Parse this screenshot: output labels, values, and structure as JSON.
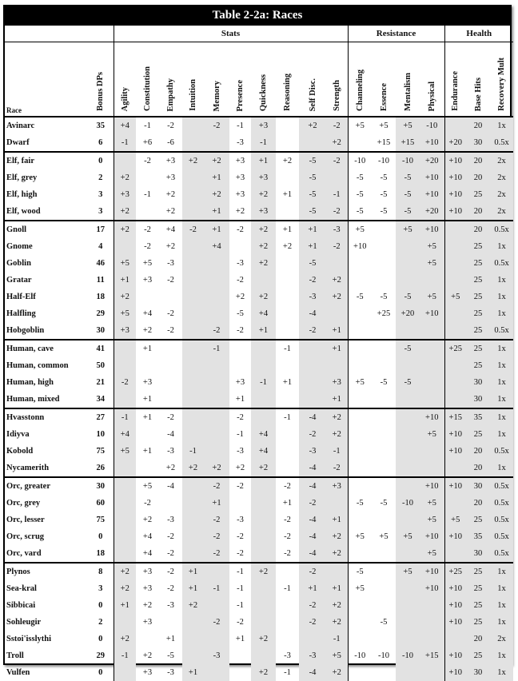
{
  "title": "Table 2-2a: Races",
  "groups": {
    "stats": "Stats",
    "resistance": "Resistance",
    "health": "Health"
  },
  "headers": {
    "race": "Race",
    "bonus_dps": "Bonus DPs",
    "stats": [
      "Agility",
      "Constitution",
      "Empathy",
      "Intuition",
      "Memory",
      "Presence",
      "Quickness",
      "Reasoning",
      "Self Disc.",
      "Strength"
    ],
    "resistance": [
      "Channeling",
      "Essence",
      "Mentalism",
      "Physical"
    ],
    "health": [
      "Endurance",
      "Base Hits",
      "Recovery Mult"
    ]
  },
  "row_groups": [
    [
      [
        "Avinarc",
        "35",
        "+4",
        "-1",
        "-2",
        "",
        "-2",
        "-1",
        "+3",
        "",
        "+2",
        "-2",
        "+5",
        "+5",
        "+5",
        "-10",
        "",
        "20",
        "1x"
      ],
      [
        "Dwarf",
        "6",
        "-1",
        "+6",
        "-6",
        "",
        "",
        "-3",
        "-1",
        "",
        "",
        "+2",
        "",
        "+15",
        "+15",
        "+10",
        "+20",
        "30",
        "0.5x"
      ]
    ],
    [
      [
        "Elf, fair",
        "0",
        "",
        "-2",
        "+3",
        "+2",
        "+2",
        "+3",
        "+1",
        "+2",
        "-5",
        "-2",
        "-10",
        "-10",
        "-10",
        "+20",
        "+10",
        "20",
        "2x"
      ],
      [
        "Elf, grey",
        "2",
        "+2",
        "",
        "+3",
        "",
        "+1",
        "+3",
        "+3",
        "",
        "-5",
        "",
        "-5",
        "-5",
        "-5",
        "+10",
        "+10",
        "20",
        "2x"
      ],
      [
        "Elf, high",
        "3",
        "+3",
        "-1",
        "+2",
        "",
        "+2",
        "+3",
        "+2",
        "+1",
        "-5",
        "-1",
        "-5",
        "-5",
        "-5",
        "+10",
        "+10",
        "25",
        "2x"
      ],
      [
        "Elf, wood",
        "3",
        "+2",
        "",
        "+2",
        "",
        "+1",
        "+2",
        "+3",
        "",
        "-5",
        "-2",
        "-5",
        "-5",
        "-5",
        "+20",
        "+10",
        "20",
        "2x"
      ]
    ],
    [
      [
        "Gnoll",
        "17",
        "+2",
        "-2",
        "+4",
        "-2",
        "+1",
        "-2",
        "+2",
        "+1",
        "+1",
        "-3",
        "+5",
        "",
        "+5",
        "+10",
        "",
        "20",
        "0.5x"
      ],
      [
        "Gnome",
        "4",
        "",
        "-2",
        "+2",
        "",
        "+4",
        "",
        "+2",
        "+2",
        "+1",
        "-2",
        "+10",
        "",
        "",
        "+5",
        "",
        "25",
        "1x"
      ],
      [
        "Goblin",
        "46",
        "+5",
        "+5",
        "-3",
        "",
        "",
        "-3",
        "+2",
        "",
        "-5",
        "",
        "",
        "",
        "",
        "+5",
        "",
        "25",
        "0.5x"
      ],
      [
        "Gratar",
        "11",
        "+1",
        "+3",
        "-2",
        "",
        "",
        "-2",
        "",
        "",
        "-2",
        "+2",
        "",
        "",
        "",
        "",
        "",
        "25",
        "1x"
      ],
      [
        "Half-Elf",
        "18",
        "+2",
        "",
        "",
        "",
        "",
        "+2",
        "+2",
        "",
        "-3",
        "+2",
        "-5",
        "-5",
        "-5",
        "+5",
        "+5",
        "25",
        "1x"
      ],
      [
        "Halfling",
        "29",
        "+5",
        "+4",
        "-2",
        "",
        "",
        "-5",
        "+4",
        "",
        "-4",
        "",
        "",
        "+25",
        "+20",
        "+10",
        "",
        "25",
        "1x"
      ],
      [
        "Hobgoblin",
        "30",
        "+3",
        "+2",
        "-2",
        "",
        "-2",
        "-2",
        "+1",
        "",
        "-2",
        "+1",
        "",
        "",
        "",
        "",
        "",
        "25",
        "0.5x"
      ]
    ],
    [
      [
        "Human, cave",
        "41",
        "",
        "+1",
        "",
        "",
        "-1",
        "",
        "",
        "-1",
        "",
        "+1",
        "",
        "",
        "-5",
        "",
        "+25",
        "25",
        "1x"
      ],
      [
        "Human, common",
        "50",
        "",
        "",
        "",
        "",
        "",
        "",
        "",
        "",
        "",
        "",
        "",
        "",
        "",
        "",
        "",
        "25",
        "1x"
      ],
      [
        "Human, high",
        "21",
        "-2",
        "+3",
        "",
        "",
        "",
        "+3",
        "-1",
        "+1",
        "",
        "+3",
        "+5",
        "-5",
        "-5",
        "",
        "",
        "30",
        "1x"
      ],
      [
        "Human, mixed",
        "34",
        "",
        "+1",
        "",
        "",
        "",
        "+1",
        "",
        "",
        "",
        "+1",
        "",
        "",
        "",
        "",
        "",
        "30",
        "1x"
      ]
    ],
    [
      [
        "Hvasstonn",
        "27",
        "-1",
        "+1",
        "-2",
        "",
        "",
        "-2",
        "",
        "-1",
        "-4",
        "+2",
        "",
        "",
        "",
        "+10",
        "+15",
        "35",
        "1x"
      ],
      [
        "Idiyva",
        "10",
        "+4",
        "",
        "-4",
        "",
        "",
        "-1",
        "+4",
        "",
        "-2",
        "+2",
        "",
        "",
        "",
        "+5",
        "+10",
        "25",
        "1x"
      ],
      [
        "Kobold",
        "75",
        "+5",
        "+1",
        "-3",
        "-1",
        "",
        "-3",
        "+4",
        "",
        "-3",
        "-1",
        "",
        "",
        "",
        "",
        "+10",
        "20",
        "0.5x"
      ],
      [
        "Nycamerith",
        "26",
        "",
        "",
        "+2",
        "+2",
        "+2",
        "+2",
        "+2",
        "",
        "-4",
        "-2",
        "",
        "",
        "",
        "",
        "",
        "20",
        "1x"
      ]
    ],
    [
      [
        "Orc, greater",
        "30",
        "",
        "+5",
        "-4",
        "",
        "-2",
        "-2",
        "",
        "-2",
        "-4",
        "+3",
        "",
        "",
        "",
        "+10",
        "+10",
        "30",
        "0.5x"
      ],
      [
        "Orc, grey",
        "60",
        "",
        "-2",
        "",
        "",
        "+1",
        "",
        "",
        "+1",
        "-2",
        "",
        "-5",
        "-5",
        "-10",
        "+5",
        "",
        "20",
        "0.5x"
      ],
      [
        "Orc, lesser",
        "75",
        "",
        "+2",
        "-3",
        "",
        "-2",
        "-3",
        "",
        "-2",
        "-4",
        "+1",
        "",
        "",
        "",
        "+5",
        "+5",
        "25",
        "0.5x"
      ],
      [
        "Orc, scrug",
        "0",
        "",
        "+4",
        "-2",
        "",
        "-2",
        "-2",
        "",
        "-2",
        "-4",
        "+2",
        "+5",
        "+5",
        "+5",
        "+10",
        "+10",
        "35",
        "0.5x"
      ],
      [
        "Orc, vard",
        "18",
        "",
        "+4",
        "-2",
        "",
        "-2",
        "-2",
        "",
        "-2",
        "-4",
        "+2",
        "",
        "",
        "",
        "+5",
        "",
        "30",
        "0.5x"
      ]
    ],
    [
      [
        "Plynos",
        "8",
        "+2",
        "+3",
        "-2",
        "+1",
        "",
        "-1",
        "+2",
        "",
        "-2",
        "",
        "-5",
        "",
        "+5",
        "+10",
        "+25",
        "25",
        "1x"
      ],
      [
        "Sea-kral",
        "3",
        "+2",
        "+3",
        "-2",
        "+1",
        "-1",
        "-1",
        "",
        "-1",
        "+1",
        "+1",
        "+5",
        "",
        "",
        "+10",
        "+10",
        "25",
        "1x"
      ],
      [
        "Sibbicai",
        "0",
        "+1",
        "+2",
        "-3",
        "+2",
        "",
        "-1",
        "",
        "",
        "-2",
        "+2",
        "",
        "",
        "",
        "",
        "+10",
        "25",
        "1x"
      ],
      [
        "Sohleugir",
        "2",
        "",
        "+3",
        "",
        "",
        "-2",
        "-2",
        "",
        "",
        "-2",
        "+2",
        "",
        "-5",
        "",
        "",
        "+10",
        "25",
        "1x"
      ],
      [
        "Sstoi'isslythi",
        "0",
        "+2",
        "",
        "+1",
        "",
        "",
        "+1",
        "+2",
        "",
        "",
        "-1",
        "",
        "",
        "",
        "",
        "",
        "20",
        "2x"
      ],
      [
        "Troll",
        "29",
        "-1",
        "+2",
        "-5",
        "",
        "-3",
        "",
        "",
        "-3",
        "-3",
        "+5",
        "-10",
        "-10",
        "-10",
        "+15",
        "+10",
        "25",
        "1x"
      ],
      [
        "Vulfen",
        "0",
        "",
        "+3",
        "-3",
        "+1",
        "",
        "",
        "+2",
        "-1",
        "-4",
        "+2",
        "",
        "",
        "",
        "",
        "+10",
        "30",
        "1x"
      ]
    ]
  ]
}
